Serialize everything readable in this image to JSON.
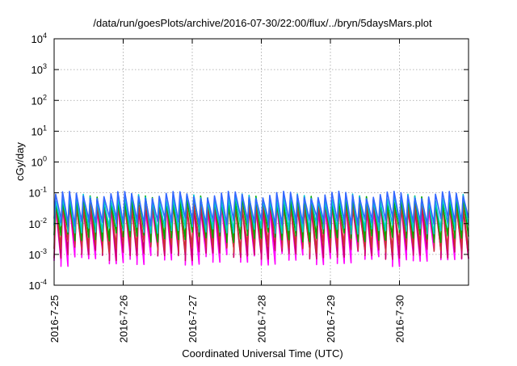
{
  "chart_data": {
    "type": "line",
    "title": "/data/run/goesPlots/archive/2016-07-30/22:00/flux/../bryn/5daysMars.plot",
    "xlabel": "Coordinated Universal Time (UTC)",
    "ylabel": "cGy/day",
    "x_tick_labels": [
      "2016-7-25",
      "2016-7-26",
      "2016-7-27",
      "2016-7-28",
      "2016-7-29",
      "2016-7-30"
    ],
    "xlim": [
      "2016-07-25T00:00",
      "2016-07-31T00:00"
    ],
    "y_scale": "log",
    "ylim": [
      0.0001,
      10000
    ],
    "y_tick_labels": [
      {
        "base": "10",
        "exp": "-4"
      },
      {
        "base": "10",
        "exp": "-3"
      },
      {
        "base": "10",
        "exp": "-2"
      },
      {
        "base": "10",
        "exp": "-1"
      },
      {
        "base": "10",
        "exp": "0"
      },
      {
        "base": "10",
        "exp": "1"
      },
      {
        "base": "10",
        "exp": "2"
      },
      {
        "base": "10",
        "exp": "3"
      },
      {
        "base": "10",
        "exp": "4"
      }
    ],
    "grid": true,
    "sawtooth": {
      "cycles_per_day": 10,
      "series": [
        {
          "color": "#ff00ff",
          "peak": 0.035,
          "trough": 0.0008
        },
        {
          "color": "#cc0066",
          "peak": 0.04,
          "trough": 0.0012
        },
        {
          "color": "#cc3333",
          "peak": 0.045,
          "trough": 0.002
        },
        {
          "color": "#00aa00",
          "peak": 0.06,
          "trough": 0.004
        },
        {
          "color": "#00cccc",
          "peak": 0.07,
          "trough": 0.007
        },
        {
          "color": "#3366ff",
          "peak": 0.085,
          "trough": 0.012
        }
      ]
    }
  }
}
